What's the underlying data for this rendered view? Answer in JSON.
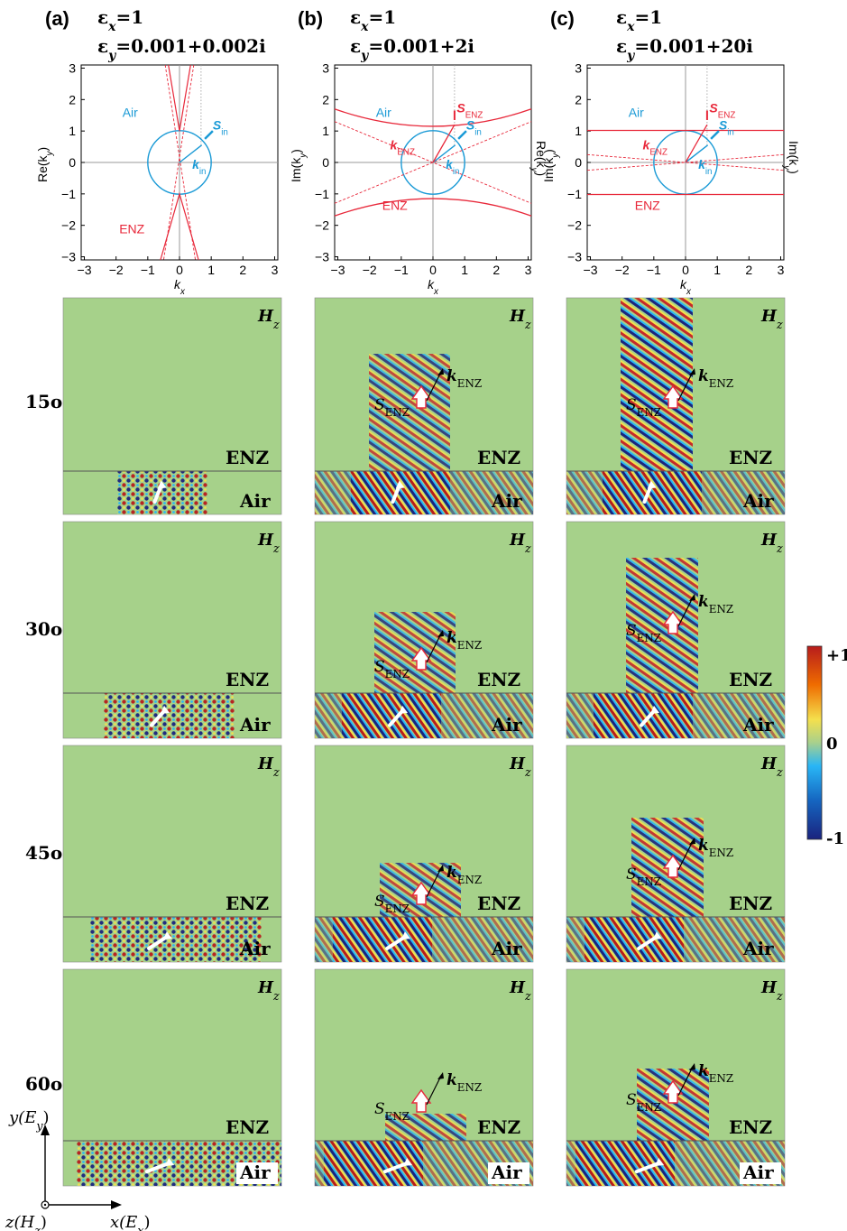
{
  "columns": [
    {
      "panel": "(a)",
      "eps_x": "=1",
      "eps_y": "=0.001+0.002i",
      "ylabel_left": "Re(k",
      "ylabel_right": "",
      "labels": {
        "air": "Air",
        "enz": "ENZ",
        "s_in": "S",
        "s_in_sub": "in",
        "k_in": "k",
        "k_in_sub": "in",
        "s_enz": "",
        "k_enz": ""
      }
    },
    {
      "panel": "(b)",
      "eps_x": "=1",
      "eps_y": "=0.001+2i",
      "ylabel_left": "Im(k",
      "ylabel_right": "Re(k",
      "labels": {
        "air": "Air",
        "enz": "ENZ",
        "s_in": "S",
        "s_in_sub": "in",
        "k_in": "k",
        "k_in_sub": "in",
        "s_enz": "S",
        "k_enz": "k"
      }
    },
    {
      "panel": "(c)",
      "eps_x": "=1",
      "eps_y": "=0.001+20i",
      "ylabel_left": "Im(k",
      "ylabel_right": "Im(k",
      "labels": {
        "air": "Air",
        "enz": "ENZ",
        "s_in": "S",
        "s_in_sub": "in",
        "k_in": "k",
        "k_in_sub": "in",
        "s_enz": "S",
        "k_enz": "k"
      }
    }
  ],
  "eps_symbol": "ε",
  "eps_sub_x": "x",
  "eps_sub_y": "y",
  "ylabel_close": ")",
  "ylabel_sub": "y",
  "xlabel": "k",
  "xlabel_sub": "x",
  "ticks": [
    "−3",
    "−2",
    "−1",
    "0",
    "1",
    "2",
    "3"
  ],
  "enz_sub": "ENZ",
  "field_labels": {
    "hz": "H",
    "hz_sub": "z",
    "enz": "ENZ",
    "air": "Air",
    "s": "S",
    "k": "k",
    "sub": "ENZ"
  },
  "angles": [
    "15",
    "30",
    "45",
    "60"
  ],
  "degree": "o",
  "colorbar": {
    "max": "+1",
    "mid": "0",
    "min": "-1",
    "colors": [
      "#1a237e",
      "#1565c0",
      "#29b6f6",
      "#a8d08d",
      "#f4e04d",
      "#ef6c00",
      "#b71c1c"
    ]
  },
  "axes_indicator": {
    "y": "y(E",
    "y_sub": "y",
    "x": "x(E",
    "x_sub": "x",
    "z": "z(H",
    "z_sub": "z",
    "close": ")"
  },
  "colors": {
    "red": "#e8283a",
    "blue": "#1a9ad6",
    "green_bg": "#a6d18a"
  }
}
